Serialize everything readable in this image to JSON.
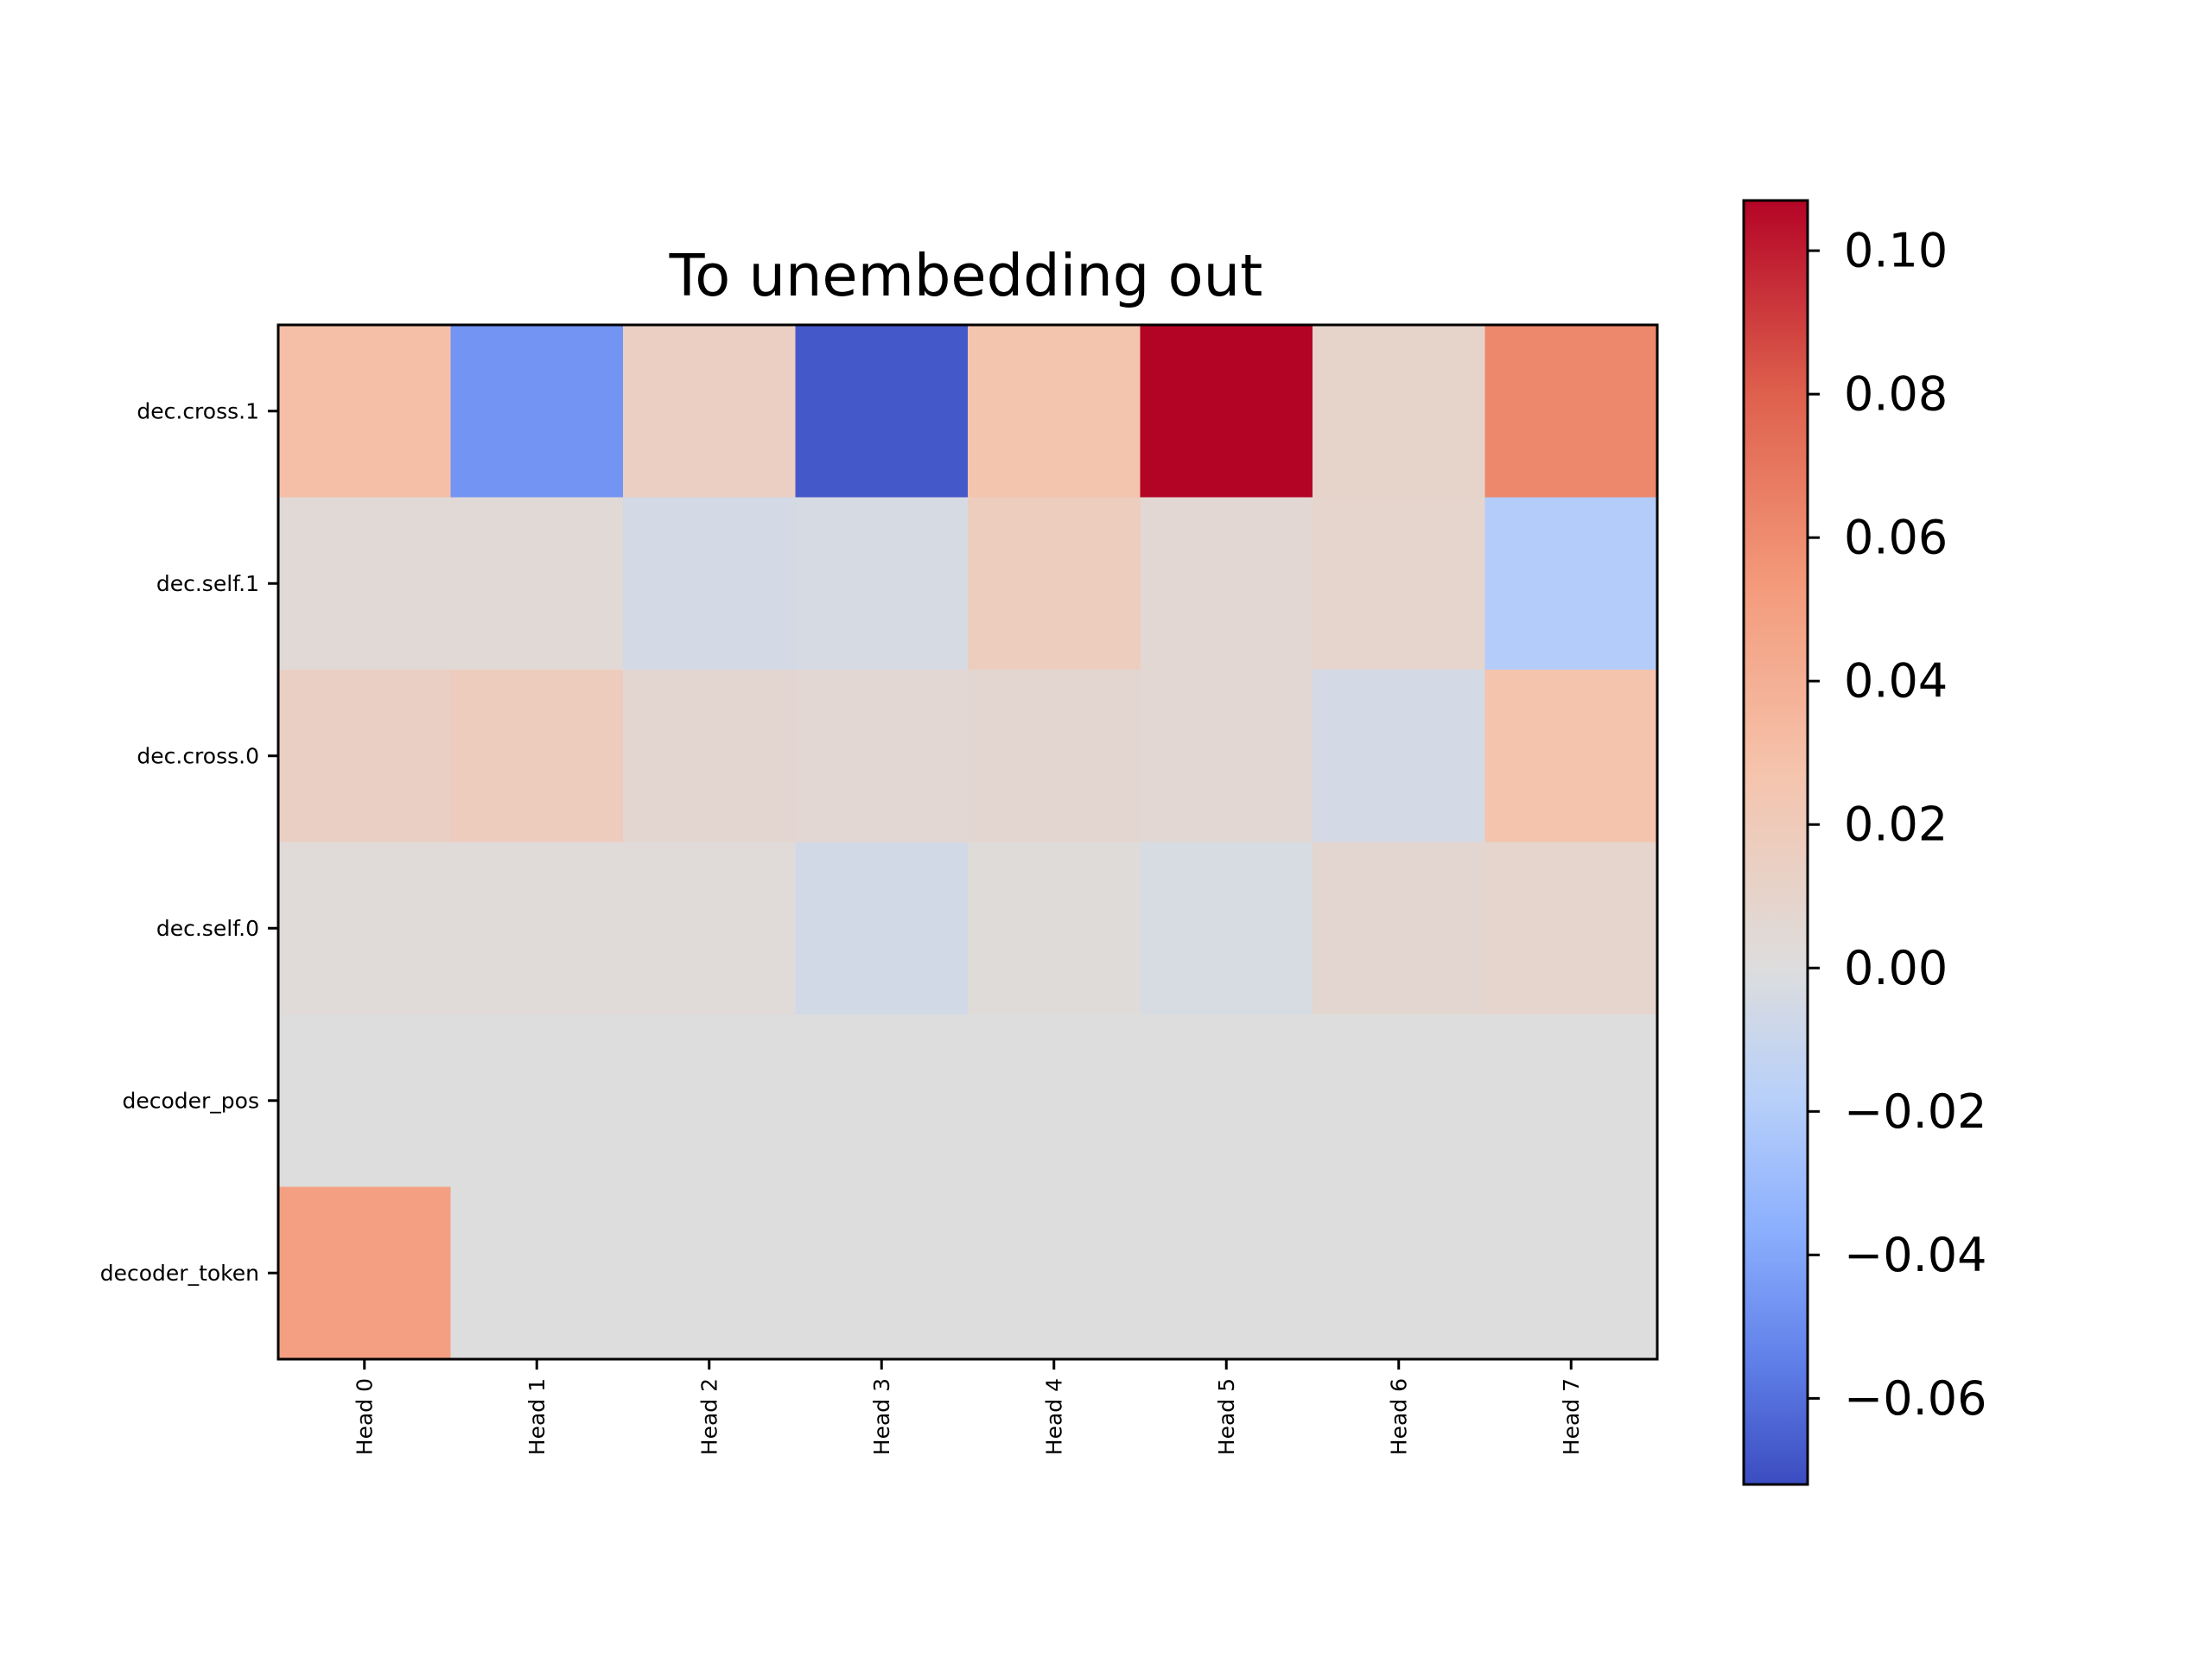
{
  "chart_data": {
    "type": "heatmap",
    "title": "To unembedding out",
    "colormap": "coolwarm",
    "norm": "two-slope centered at 0",
    "x_categories": [
      "Head 0",
      "Head 1",
      "Head 2",
      "Head 3",
      "Head 4",
      "Head 5",
      "Head 6",
      "Head 7"
    ],
    "y_categories": [
      "dec.cross.1",
      "dec.self.1",
      "dec.cross.0",
      "dec.self.0",
      "decoder_pos",
      "decoder_token"
    ],
    "values": [
      [
        0.03,
        -0.047,
        0.015,
        -0.068,
        0.026,
        0.108,
        0.01,
        0.062
      ],
      [
        0.004,
        0.004,
        -0.005,
        -0.004,
        0.017,
        0.006,
        0.009,
        -0.02
      ],
      [
        0.014,
        0.018,
        0.007,
        0.006,
        0.007,
        0.006,
        -0.005,
        0.027
      ],
      [
        0.003,
        0.003,
        0.003,
        -0.006,
        0.002,
        -0.003,
        0.007,
        0.009
      ],
      [
        0.0,
        0.0,
        0.0,
        0.0,
        0.0,
        0.0,
        0.0,
        0.0
      ],
      [
        0.05,
        0.0,
        0.0,
        0.0,
        0.0,
        0.0,
        0.0,
        0.0
      ]
    ],
    "colorbar": {
      "vmin": -0.072,
      "vmax": 0.107,
      "ticks": [
        {
          "value": 0.1,
          "label": "0.10"
        },
        {
          "value": 0.08,
          "label": "0.08"
        },
        {
          "value": 0.06,
          "label": "0.06"
        },
        {
          "value": 0.04,
          "label": "0.04"
        },
        {
          "value": 0.02,
          "label": "0.02"
        },
        {
          "value": 0.0,
          "label": "0.00"
        },
        {
          "value": -0.02,
          "label": "−0.02"
        },
        {
          "value": -0.04,
          "label": "−0.04"
        },
        {
          "value": -0.06,
          "label": "−0.06"
        }
      ]
    },
    "grid": false
  }
}
